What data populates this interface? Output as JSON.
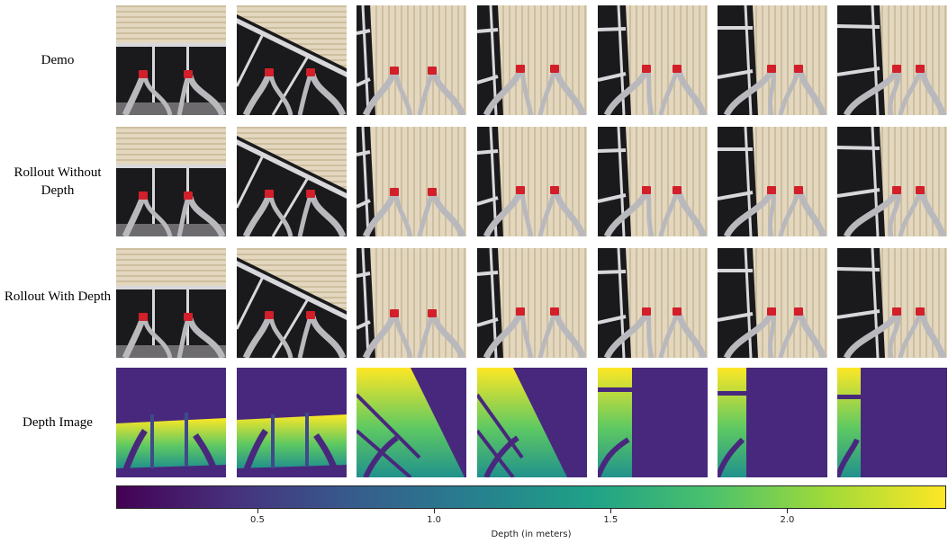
{
  "rows": [
    {
      "label": "Demo",
      "kind": "photo"
    },
    {
      "label": "Rollout Without Depth",
      "kind": "photo"
    },
    {
      "label": "Rollout With Depth",
      "kind": "photo"
    },
    {
      "label": "Depth Image",
      "kind": "depth"
    }
  ],
  "frames_per_row": 7,
  "colorbar": {
    "label": "Depth (in meters)",
    "range": [
      0.1,
      2.45
    ],
    "ticks": [
      "0.5",
      "1.0",
      "1.5",
      "2.0"
    ],
    "tick_values": [
      0.5,
      1.0,
      1.5,
      2.0
    ],
    "colormap": [
      "#440154",
      "#46327e",
      "#365c8d",
      "#277f8e",
      "#1fa187",
      "#4ac16d",
      "#a0da39",
      "#fde725"
    ]
  },
  "colors": {
    "blind": "#e3d7bf",
    "blind_stripe": "#cdbf9f",
    "window_dark": "#1a1a1c",
    "frame": "#d8d8dc",
    "gripper": "#b9b9bd",
    "cap": "#d21f2a",
    "depth_far": "#48287d",
    "depth_near": "#fde725"
  }
}
